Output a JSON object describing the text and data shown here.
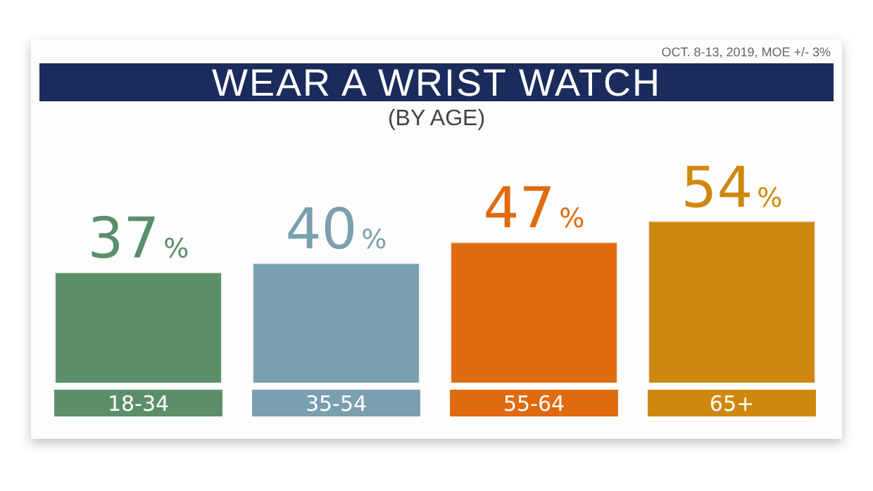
{
  "chart_data": {
    "type": "bar",
    "title": "WEAR A WRIST WATCH",
    "subtitle": "(BY AGE)",
    "annotations": [
      "OCT. 8-13, 2019, MOE +/- 3%"
    ],
    "categories": [
      "18-34",
      "35-54",
      "55-64",
      "65+"
    ],
    "values": [
      37,
      40,
      47,
      54
    ],
    "colors": [
      "#5b8f69",
      "#7a9fae",
      "#e06a0e",
      "#cf880e"
    ],
    "value_labels": [
      "37%",
      "40%",
      "47%",
      "54%"
    ],
    "grid": false,
    "legend": false
  }
}
